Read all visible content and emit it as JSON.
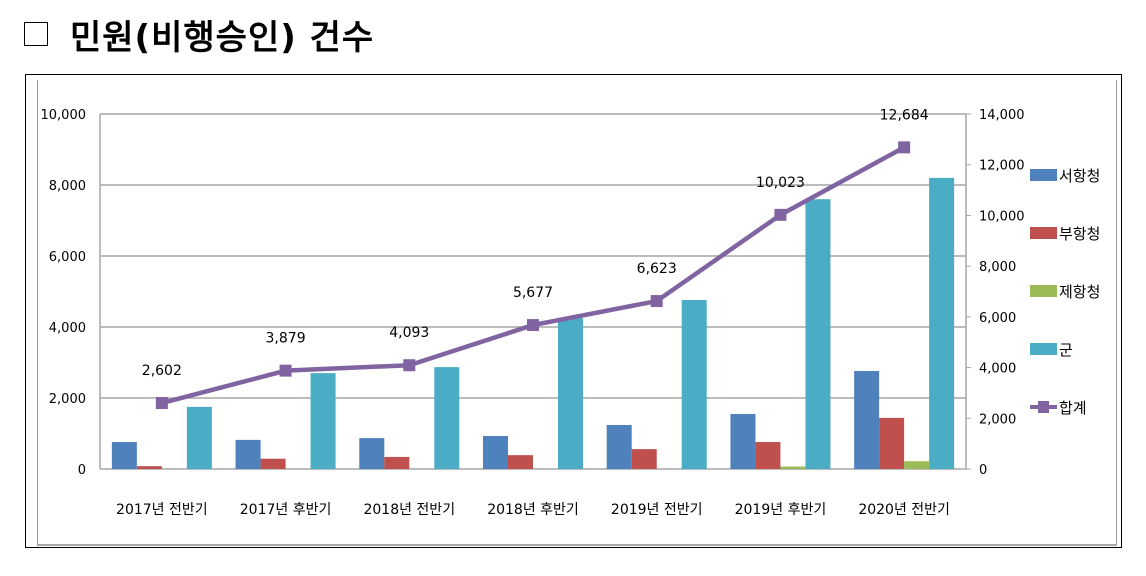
{
  "title": {
    "checkbox_icon": "empty-square",
    "text": "민원(비행승인) 건수"
  },
  "chart_data": {
    "type": "bar",
    "title": "민원(비행승인) 건수",
    "categories": [
      "2017년 전반기",
      "2017년 후반기",
      "2018년 전반기",
      "2018년 후반기",
      "2019년 전반기",
      "2019년 후반기",
      "2020년 전반기"
    ],
    "series": [
      {
        "name": "서항청",
        "type": "bar",
        "axis": "left",
        "color": "#4F81BD",
        "values": [
          760,
          820,
          870,
          930,
          1240,
          1550,
          2760
        ]
      },
      {
        "name": "부항청",
        "type": "bar",
        "axis": "left",
        "color": "#C0504D",
        "values": [
          80,
          290,
          340,
          390,
          560,
          760,
          1440
        ]
      },
      {
        "name": "제항청",
        "type": "bar",
        "axis": "left",
        "color": "#9BBB59",
        "values": [
          0,
          0,
          0,
          0,
          0,
          70,
          220
        ]
      },
      {
        "name": "군",
        "type": "bar",
        "axis": "left",
        "color": "#4BACC6",
        "values": [
          1750,
          2700,
          2870,
          4250,
          4760,
          7600,
          8200
        ]
      },
      {
        "name": "합계",
        "type": "line",
        "axis": "right",
        "color": "#8064A2",
        "values": [
          2602,
          3879,
          4093,
          5677,
          6623,
          10023,
          12684
        ]
      }
    ],
    "data_labels": [
      "2,602",
      "3,879",
      "4,093",
      "5,677",
      "6,623",
      "10,023",
      "12,684"
    ],
    "left_axis": {
      "ylim": [
        0,
        10000
      ],
      "ticks": [
        "0",
        "2,000",
        "4,000",
        "6,000",
        "8,000",
        "10,000"
      ],
      "tick_values": [
        0,
        2000,
        4000,
        6000,
        8000,
        10000
      ]
    },
    "right_axis": {
      "ylim": [
        0,
        14000
      ],
      "ticks": [
        "0",
        "2,000",
        "4,000",
        "6,000",
        "8,000",
        "10,000",
        "12,000",
        "14,000"
      ],
      "tick_values": [
        0,
        2000,
        4000,
        6000,
        8000,
        10000,
        12000,
        14000
      ]
    },
    "xlabel": "",
    "ylabel": "",
    "grid": true,
    "legend_position": "right"
  }
}
